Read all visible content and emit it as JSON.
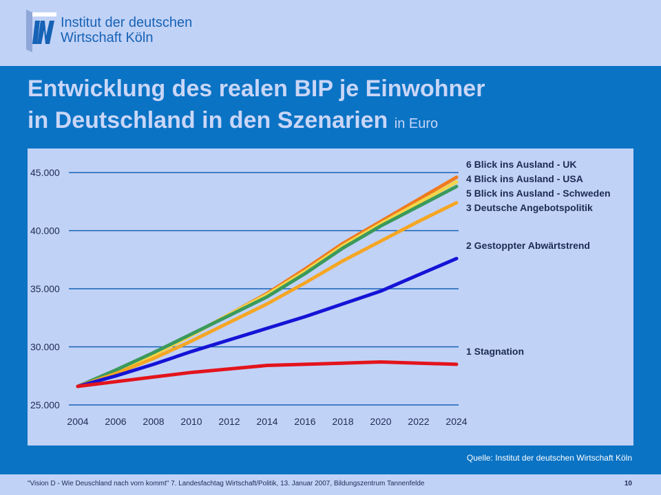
{
  "header": {
    "logo_line1": "Institut der deutschen",
    "logo_line2": "Wirtschaft Köln"
  },
  "title": {
    "line1": "Entwicklung des realen BIP je Einwohner",
    "line2": "in Deutschland in den Szenarien",
    "unit": "in Euro"
  },
  "chart_data": {
    "type": "line",
    "title": "Entwicklung des realen BIP je Einwohner in Deutschland in den Szenarien",
    "ylabel": "in Euro",
    "xlim": [
      2004,
      2024
    ],
    "ylim": [
      25000,
      45000
    ],
    "x_ticks": [
      2004,
      2006,
      2008,
      2010,
      2012,
      2014,
      2016,
      2018,
      2020,
      2022,
      2024
    ],
    "x_tick_labels": [
      "2004",
      "2006",
      "2008",
      "2010",
      "2012",
      "2014",
      "2016",
      "2018",
      "2020",
      "2022",
      "2024"
    ],
    "y_ticks": [
      25000,
      30000,
      35000,
      40000,
      45000
    ],
    "y_tick_labels": [
      "25.000",
      "30.000",
      "35.000",
      "40.000",
      "45.000"
    ],
    "grid": true,
    "x": [
      2004,
      2006,
      2008,
      2010,
      2012,
      2014,
      2016,
      2018,
      2020,
      2022,
      2024
    ],
    "series": [
      {
        "name": "6 Blick ins Ausland - UK",
        "color": "#f07a1e",
        "values": [
          26600,
          27900,
          29300,
          31000,
          32800,
          34600,
          36700,
          38900,
          40800,
          42700,
          44600
        ]
      },
      {
        "name": "4 Blick ins Ausland - USA",
        "color": "#f2d54a",
        "values": [
          26600,
          27900,
          29300,
          31000,
          32800,
          34500,
          36500,
          38700,
          40600,
          42400,
          44200
        ]
      },
      {
        "name": "5 Blick ins Ausland - Schweden",
        "color": "#3a9a5c",
        "values": [
          26600,
          28000,
          29500,
          31100,
          32700,
          34300,
          36300,
          38500,
          40400,
          42100,
          43800
        ]
      },
      {
        "name": "3 Deutsche Angebotspolitik",
        "color": "#f5a623",
        "values": [
          26600,
          27700,
          29000,
          30500,
          32100,
          33700,
          35500,
          37400,
          39100,
          40800,
          42400
        ]
      },
      {
        "name": "2 Gestoppter Abwärtstrend",
        "color": "#1414d6",
        "values": [
          26600,
          27500,
          28500,
          29600,
          30600,
          31600,
          32600,
          33700,
          34800,
          36200,
          37600
        ]
      },
      {
        "name": "1 Stagnation",
        "color": "#e3141c",
        "values": [
          26600,
          27000,
          27400,
          27800,
          28100,
          28400,
          28500,
          28600,
          28700,
          28600,
          28500
        ]
      }
    ]
  },
  "source": "Quelle: Institut der deutschen Wirtschaft Köln",
  "footer": {
    "text": "\"Vision D - Wie Deuschland nach vorn kommt\" 7. Landesfachtag Wirtschaft/Politik, 13. Januar 2007, Bildungszentrum Tannenfelde",
    "page": "10"
  }
}
